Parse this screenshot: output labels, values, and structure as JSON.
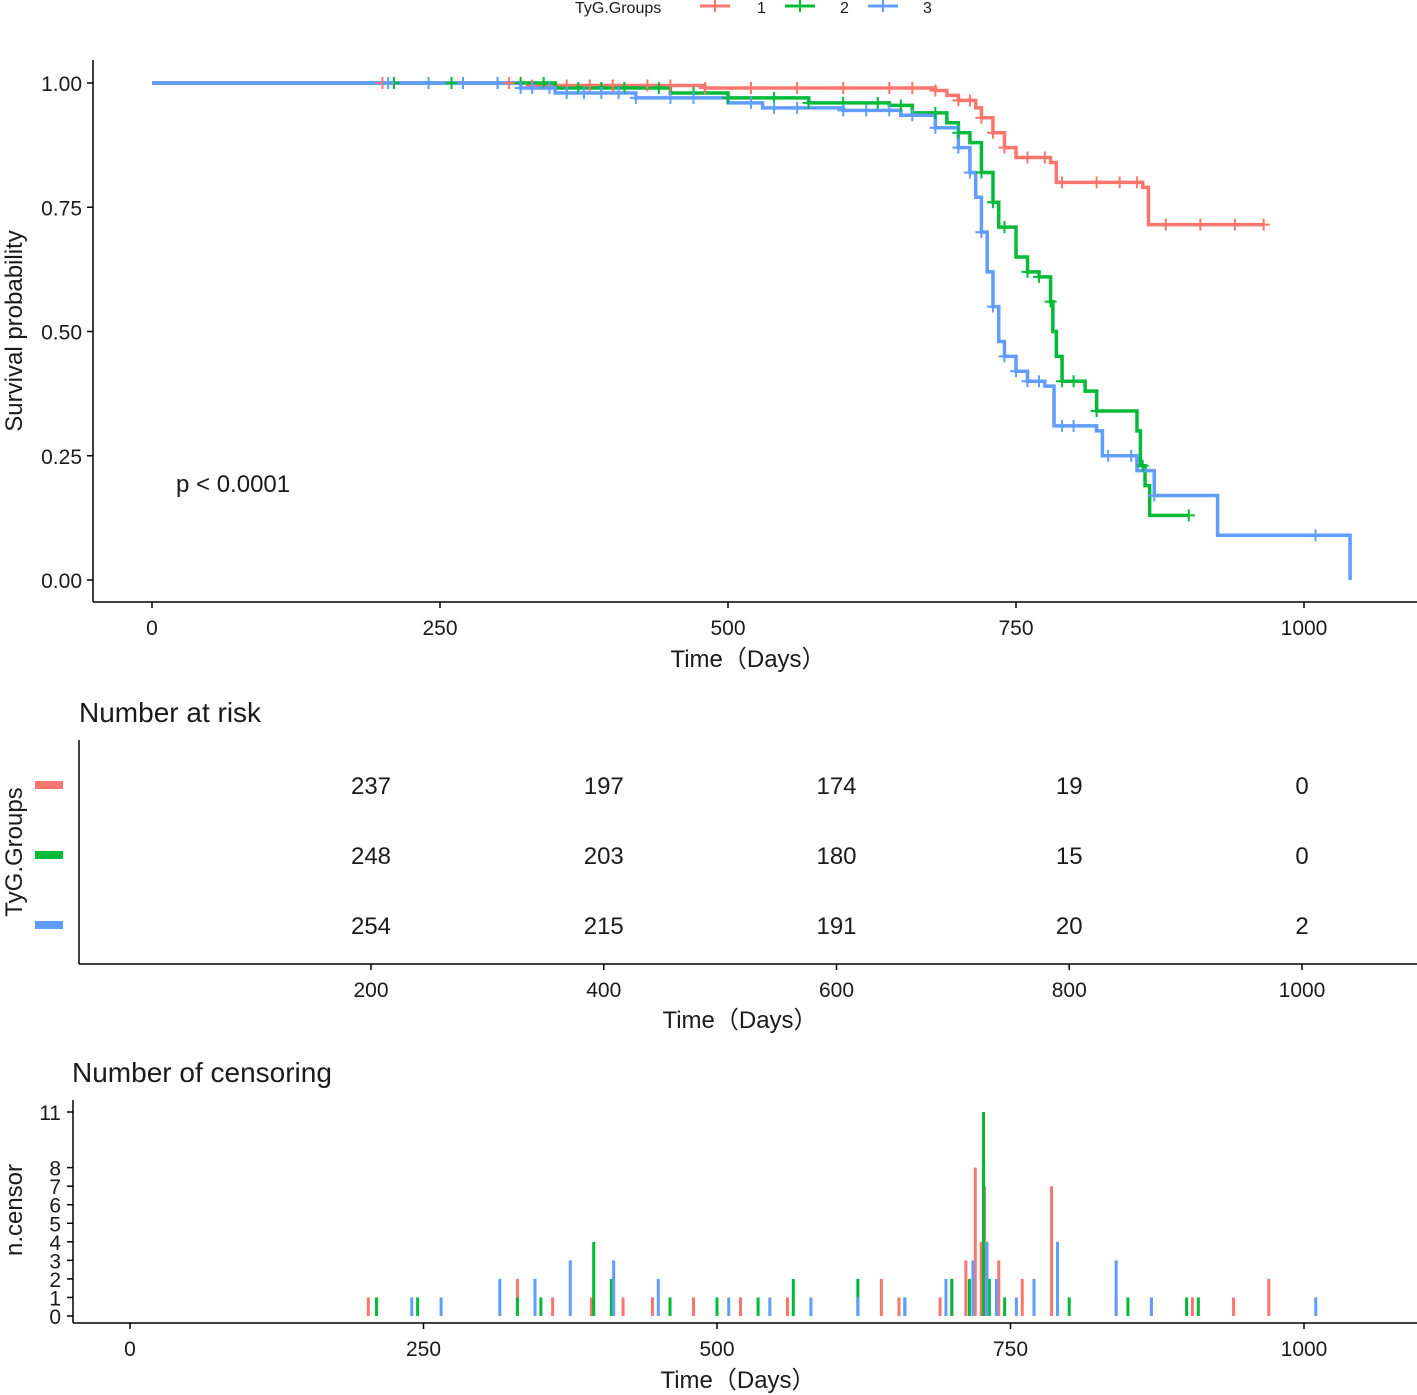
{
  "legend": {
    "title": "TyG.Groups",
    "items": [
      {
        "label": "1",
        "color": "#F8766D"
      },
      {
        "label": "2",
        "color": "#00BA38"
      },
      {
        "label": "3",
        "color": "#619CFF"
      }
    ]
  },
  "chart_data": [
    {
      "type": "line",
      "title": "",
      "xlabel": "Time（Days）",
      "ylabel": "Survival probability",
      "xlim": [
        0,
        1040
      ],
      "ylim": [
        0,
        1
      ],
      "xticks": [
        0,
        250,
        500,
        750,
        1000
      ],
      "yticks": [
        0.0,
        0.25,
        0.5,
        0.75,
        1.0
      ],
      "ytick_labels": [
        "0.00",
        "0.25",
        "0.50",
        "0.75",
        "1.00"
      ],
      "annotation": "p < 0.0001",
      "series": [
        {
          "name": "1",
          "color": "#F8766D",
          "steps": [
            [
              0,
              1.0
            ],
            [
              330,
              0.995
            ],
            [
              480,
              0.99
            ],
            [
              680,
              0.985
            ],
            [
              690,
              0.975
            ],
            [
              700,
              0.965
            ],
            [
              715,
              0.95
            ],
            [
              720,
              0.93
            ],
            [
              730,
              0.9
            ],
            [
              740,
              0.87
            ],
            [
              750,
              0.85
            ],
            [
              780,
              0.84
            ],
            [
              785,
              0.8
            ],
            [
              860,
              0.79
            ],
            [
              865,
              0.715
            ],
            [
              965,
              0.715
            ]
          ],
          "censor_times": [
            200,
            210,
            240,
            270,
            310,
            330,
            360,
            380,
            400,
            430,
            450,
            480,
            520,
            560,
            600,
            640,
            660,
            680,
            700,
            710,
            720,
            730,
            740,
            760,
            775,
            790,
            820,
            840,
            855,
            880,
            910,
            940,
            965
          ]
        },
        {
          "name": "2",
          "color": "#00BA38",
          "steps": [
            [
              0,
              1.0
            ],
            [
              350,
              0.99
            ],
            [
              450,
              0.98
            ],
            [
              500,
              0.97
            ],
            [
              570,
              0.96
            ],
            [
              640,
              0.955
            ],
            [
              660,
              0.94
            ],
            [
              690,
              0.92
            ],
            [
              700,
              0.9
            ],
            [
              710,
              0.88
            ],
            [
              720,
              0.82
            ],
            [
              730,
              0.76
            ],
            [
              735,
              0.71
            ],
            [
              750,
              0.65
            ],
            [
              760,
              0.62
            ],
            [
              770,
              0.61
            ],
            [
              780,
              0.56
            ],
            [
              782,
              0.5
            ],
            [
              785,
              0.45
            ],
            [
              790,
              0.4
            ],
            [
              810,
              0.38
            ],
            [
              820,
              0.34
            ],
            [
              855,
              0.3
            ],
            [
              858,
              0.23
            ],
            [
              862,
              0.19
            ],
            [
              866,
              0.13
            ],
            [
              900,
              0.13
            ]
          ],
          "censor_times": [
            210,
            240,
            260,
            300,
            320,
            340,
            370,
            390,
            410,
            440,
            470,
            500,
            540,
            570,
            600,
            630,
            650,
            680,
            700,
            720,
            730,
            740,
            760,
            770,
            780,
            790,
            800,
            820,
            860,
            900
          ]
        },
        {
          "name": "3",
          "color": "#619CFF",
          "steps": [
            [
              0,
              1.0
            ],
            [
              320,
              0.99
            ],
            [
              350,
              0.98
            ],
            [
              420,
              0.97
            ],
            [
              500,
              0.96
            ],
            [
              530,
              0.95
            ],
            [
              600,
              0.945
            ],
            [
              650,
              0.935
            ],
            [
              680,
              0.91
            ],
            [
              700,
              0.87
            ],
            [
              710,
              0.82
            ],
            [
              715,
              0.77
            ],
            [
              720,
              0.7
            ],
            [
              725,
              0.62
            ],
            [
              730,
              0.55
            ],
            [
              735,
              0.48
            ],
            [
              740,
              0.45
            ],
            [
              750,
              0.42
            ],
            [
              760,
              0.4
            ],
            [
              775,
              0.39
            ],
            [
              783,
              0.31
            ],
            [
              820,
              0.3
            ],
            [
              825,
              0.25
            ],
            [
              855,
              0.22
            ],
            [
              870,
              0.17
            ],
            [
              925,
              0.09
            ],
            [
              1040,
              0.09
            ],
            [
              1040,
              0.0
            ]
          ],
          "censor_times": [
            205,
            240,
            270,
            300,
            320,
            330,
            345,
            360,
            375,
            390,
            405,
            420,
            450,
            470,
            520,
            540,
            560,
            600,
            620,
            640,
            660,
            680,
            700,
            710,
            720,
            730,
            740,
            750,
            760,
            770,
            790,
            800,
            830,
            850,
            870,
            1010
          ]
        }
      ]
    },
    {
      "type": "table",
      "title": "Number at risk",
      "xlabel": "Time（Days）",
      "ylabel": "TyG.Groups",
      "xlim": [
        0,
        1040
      ],
      "xticks": [
        200,
        400,
        600,
        800,
        1000
      ],
      "rows": [
        {
          "group": "1",
          "color": "#F8766D",
          "values": [
            "237",
            "197",
            "174",
            "19",
            "0"
          ]
        },
        {
          "group": "2",
          "color": "#00BA38",
          "values": [
            "248",
            "203",
            "180",
            "15",
            "0"
          ]
        },
        {
          "group": "3",
          "color": "#619CFF",
          "values": [
            "254",
            "215",
            "191",
            "20",
            "2"
          ]
        }
      ]
    },
    {
      "type": "bar",
      "title": "Number of censoring",
      "xlabel": "Time（Days）",
      "ylabel": "n.censor",
      "xlim": [
        0,
        1040
      ],
      "ylim": [
        0,
        11.5
      ],
      "xticks": [
        0,
        250,
        500,
        750,
        1000
      ],
      "yticks": [
        0,
        1,
        2,
        3,
        4,
        5,
        6,
        7,
        8,
        11
      ],
      "series": [
        {
          "name": "1",
          "color": "#F8766D",
          "points": [
            [
              203,
              1
            ],
            [
              330,
              2
            ],
            [
              360,
              1
            ],
            [
              393,
              1
            ],
            [
              420,
              1
            ],
            [
              445,
              1
            ],
            [
              480,
              1
            ],
            [
              520,
              1
            ],
            [
              560,
              1
            ],
            [
              640,
              2
            ],
            [
              655,
              1
            ],
            [
              690,
              1
            ],
            [
              700,
              2
            ],
            [
              712,
              3
            ],
            [
              720,
              8
            ],
            [
              725,
              4
            ],
            [
              728,
              7
            ],
            [
              740,
              3
            ],
            [
              760,
              2
            ],
            [
              785,
              7
            ],
            [
              840,
              1
            ],
            [
              870,
              1
            ],
            [
              905,
              1
            ],
            [
              940,
              1
            ],
            [
              970,
              2
            ]
          ]
        },
        {
          "name": "2",
          "color": "#00BA38",
          "points": [
            [
              210,
              1
            ],
            [
              245,
              1
            ],
            [
              330,
              1
            ],
            [
              350,
              1
            ],
            [
              395,
              4
            ],
            [
              410,
              2
            ],
            [
              460,
              1
            ],
            [
              500,
              1
            ],
            [
              535,
              1
            ],
            [
              565,
              2
            ],
            [
              620,
              2
            ],
            [
              660,
              1
            ],
            [
              700,
              2
            ],
            [
              715,
              2
            ],
            [
              727,
              11
            ],
            [
              732,
              2
            ],
            [
              745,
              1
            ],
            [
              770,
              2
            ],
            [
              800,
              1
            ],
            [
              850,
              1
            ],
            [
              900,
              1
            ],
            [
              910,
              1
            ]
          ]
        },
        {
          "name": "3",
          "color": "#619CFF",
          "points": [
            [
              240,
              1
            ],
            [
              265,
              1
            ],
            [
              315,
              2
            ],
            [
              345,
              2
            ],
            [
              375,
              3
            ],
            [
              412,
              3
            ],
            [
              450,
              2
            ],
            [
              510,
              1
            ],
            [
              545,
              1
            ],
            [
              580,
              1
            ],
            [
              620,
              1
            ],
            [
              660,
              1
            ],
            [
              695,
              2
            ],
            [
              718,
              3
            ],
            [
              730,
              4
            ],
            [
              738,
              2
            ],
            [
              755,
              1
            ],
            [
              770,
              2
            ],
            [
              790,
              4
            ],
            [
              840,
              3
            ],
            [
              870,
              1
            ],
            [
              1010,
              1
            ]
          ]
        }
      ]
    }
  ]
}
